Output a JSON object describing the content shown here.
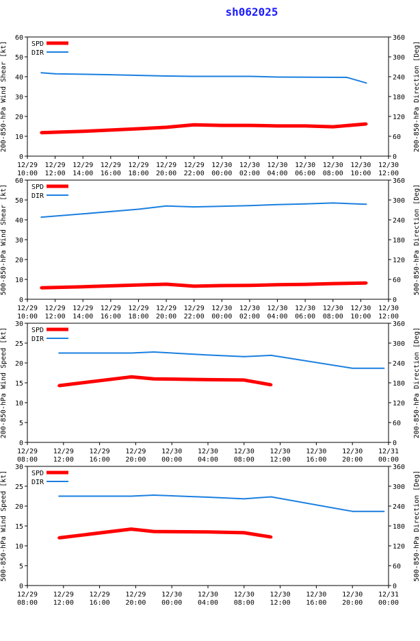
{
  "title": "sh062025",
  "colors": {
    "spd": "#ff0000",
    "dir": "#1a7fe0",
    "axis": "#000000",
    "title": "#1a1aff"
  },
  "chart_data": [
    {
      "type": "line",
      "ylabel": "200-850-hPa Wind Shear [kt]",
      "y2label": "200-850-hPa Direction [Deg]",
      "ylim": [
        0,
        60
      ],
      "yticks": [
        0,
        10,
        20,
        30,
        40,
        50,
        60
      ],
      "y2lim": [
        0,
        360
      ],
      "y2ticks": [
        0,
        60,
        120,
        180,
        240,
        300,
        360
      ],
      "xlim": [
        0,
        26
      ],
      "xticks": [
        {
          "t": 0,
          "date": "12/29",
          "time": "10:00"
        },
        {
          "t": 2,
          "date": "12/29",
          "time": "12:00"
        },
        {
          "t": 4,
          "date": "12/29",
          "time": "14:00"
        },
        {
          "t": 6,
          "date": "12/29",
          "time": "16:00"
        },
        {
          "t": 8,
          "date": "12/29",
          "time": "18:00"
        },
        {
          "t": 10,
          "date": "12/29",
          "time": "20:00"
        },
        {
          "t": 12,
          "date": "12/29",
          "time": "22:00"
        },
        {
          "t": 14,
          "date": "12/30",
          "time": "00:00"
        },
        {
          "t": 16,
          "date": "12/30",
          "time": "02:00"
        },
        {
          "t": 18,
          "date": "12/30",
          "time": "04:00"
        },
        {
          "t": 20,
          "date": "12/30",
          "time": "06:00"
        },
        {
          "t": 22,
          "date": "12/30",
          "time": "08:00"
        },
        {
          "t": 24,
          "date": "12/30",
          "time": "10:00"
        },
        {
          "t": 26,
          "date": "12/30",
          "time": "12:00"
        }
      ],
      "legend": [
        "SPD",
        "DIR"
      ],
      "series": [
        {
          "name": "SPD",
          "axis": "left",
          "x": [
            1,
            4,
            8,
            10,
            12,
            14,
            16,
            18,
            20,
            22,
            24.4
          ],
          "values": [
            11.8,
            12.5,
            13.8,
            14.5,
            15.8,
            15.5,
            15.5,
            15.2,
            15.2,
            14.8,
            16.2
          ]
        },
        {
          "name": "DIR",
          "axis": "right",
          "x": [
            1,
            2,
            6,
            10,
            12,
            16,
            18,
            23,
            24.4
          ],
          "values": [
            252,
            249,
            246,
            242,
            241,
            241,
            239,
            238,
            221
          ]
        }
      ]
    },
    {
      "type": "line",
      "ylabel": "500-850-hPa Wind Shear [kt]",
      "y2label": "500-850-hPa Direction [Deg]",
      "ylim": [
        0,
        60
      ],
      "yticks": [
        0,
        10,
        20,
        30,
        40,
        50,
        60
      ],
      "y2lim": [
        0,
        360
      ],
      "y2ticks": [
        0,
        60,
        120,
        180,
        240,
        300,
        360
      ],
      "xlim": [
        0,
        26
      ],
      "xticks": [
        {
          "t": 0,
          "date": "12/29",
          "time": "10:00"
        },
        {
          "t": 2,
          "date": "12/29",
          "time": "12:00"
        },
        {
          "t": 4,
          "date": "12/29",
          "time": "14:00"
        },
        {
          "t": 6,
          "date": "12/29",
          "time": "16:00"
        },
        {
          "t": 8,
          "date": "12/29",
          "time": "18:00"
        },
        {
          "t": 10,
          "date": "12/29",
          "time": "20:00"
        },
        {
          "t": 12,
          "date": "12/29",
          "time": "22:00"
        },
        {
          "t": 14,
          "date": "12/30",
          "time": "00:00"
        },
        {
          "t": 16,
          "date": "12/30",
          "time": "02:00"
        },
        {
          "t": 18,
          "date": "12/30",
          "time": "04:00"
        },
        {
          "t": 20,
          "date": "12/30",
          "time": "06:00"
        },
        {
          "t": 22,
          "date": "12/30",
          "time": "08:00"
        },
        {
          "t": 24,
          "date": "12/30",
          "time": "10:00"
        },
        {
          "t": 26,
          "date": "12/30",
          "time": "12:00"
        }
      ],
      "legend": [
        "SPD",
        "DIR"
      ],
      "series": [
        {
          "name": "SPD",
          "axis": "left",
          "x": [
            1,
            4,
            8,
            10,
            12,
            14,
            16,
            18,
            20,
            22,
            24.4
          ],
          "values": [
            5.8,
            6.3,
            7.2,
            7.6,
            6.6,
            6.9,
            7.0,
            7.3,
            7.5,
            7.9,
            8.2
          ]
        },
        {
          "name": "DIR",
          "axis": "right",
          "x": [
            1,
            4,
            8,
            10,
            12,
            16,
            18,
            20,
            22,
            24.4
          ],
          "values": [
            248,
            258,
            272,
            282,
            279,
            283,
            286,
            288,
            291,
            287
          ]
        }
      ]
    },
    {
      "type": "line",
      "ylabel": "200-850-hPa Wind Speed [kt]",
      "y2label": "200-850-hPa Direction [Deg]",
      "ylim": [
        0,
        30
      ],
      "yticks": [
        0,
        5,
        10,
        15,
        20,
        25,
        30
      ],
      "y2lim": [
        0,
        360
      ],
      "y2ticks": [
        0,
        60,
        120,
        180,
        240,
        300,
        360
      ],
      "xlim": [
        0,
        40
      ],
      "xticks": [
        {
          "t": 0,
          "date": "12/29",
          "time": "08:00"
        },
        {
          "t": 4,
          "date": "12/29",
          "time": "12:00"
        },
        {
          "t": 8,
          "date": "12/29",
          "time": "16:00"
        },
        {
          "t": 12,
          "date": "12/29",
          "time": "20:00"
        },
        {
          "t": 16,
          "date": "12/30",
          "time": "00:00"
        },
        {
          "t": 20,
          "date": "12/30",
          "time": "04:00"
        },
        {
          "t": 24,
          "date": "12/30",
          "time": "08:00"
        },
        {
          "t": 28,
          "date": "12/30",
          "time": "12:00"
        },
        {
          "t": 32,
          "date": "12/30",
          "time": "16:00"
        },
        {
          "t": 36,
          "date": "12/30",
          "time": "20:00"
        },
        {
          "t": 40,
          "date": "12/31",
          "time": "00:00"
        }
      ],
      "legend": [
        "SPD",
        "DIR"
      ],
      "series": [
        {
          "name": "SPD",
          "axis": "left",
          "x": [
            3.5,
            11.5,
            14,
            20,
            24,
            27
          ],
          "values": [
            14.3,
            16.5,
            16.0,
            15.8,
            15.7,
            14.5
          ]
        },
        {
          "name": "DIR",
          "axis": "right",
          "x": [
            3.5,
            11.5,
            14,
            20,
            24,
            27,
            36,
            39.5
          ],
          "values": [
            270,
            270,
            273,
            264,
            259,
            263,
            224,
            224
          ]
        }
      ]
    },
    {
      "type": "line",
      "ylabel": "500-850-hPa Wind Speed [kt]",
      "y2label": "500-850-hPa Direction [Deg]",
      "ylim": [
        0,
        30
      ],
      "yticks": [
        0,
        5,
        10,
        15,
        20,
        25,
        30
      ],
      "y2lim": [
        0,
        360
      ],
      "y2ticks": [
        0,
        60,
        120,
        180,
        240,
        300,
        360
      ],
      "xlim": [
        0,
        40
      ],
      "xticks": [
        {
          "t": 0,
          "date": "12/29",
          "time": "08:00"
        },
        {
          "t": 4,
          "date": "12/29",
          "time": "12:00"
        },
        {
          "t": 8,
          "date": "12/29",
          "time": "16:00"
        },
        {
          "t": 12,
          "date": "12/29",
          "time": "20:00"
        },
        {
          "t": 16,
          "date": "12/30",
          "time": "00:00"
        },
        {
          "t": 20,
          "date": "12/30",
          "time": "04:00"
        },
        {
          "t": 24,
          "date": "12/30",
          "time": "08:00"
        },
        {
          "t": 28,
          "date": "12/30",
          "time": "12:00"
        },
        {
          "t": 32,
          "date": "12/30",
          "time": "16:00"
        },
        {
          "t": 36,
          "date": "12/30",
          "time": "20:00"
        },
        {
          "t": 40,
          "date": "12/31",
          "time": "00:00"
        }
      ],
      "legend": [
        "SPD",
        "DIR"
      ],
      "series": [
        {
          "name": "SPD",
          "axis": "left",
          "x": [
            3.5,
            11.5,
            14,
            20,
            24,
            27
          ],
          "values": [
            12.0,
            14.2,
            13.6,
            13.5,
            13.3,
            12.2
          ]
        },
        {
          "name": "DIR",
          "axis": "right",
          "x": [
            3.5,
            11.5,
            14,
            20,
            24,
            27,
            36,
            39.5
          ],
          "values": [
            270,
            270,
            273,
            267,
            262,
            268,
            224,
            224
          ]
        }
      ]
    }
  ]
}
